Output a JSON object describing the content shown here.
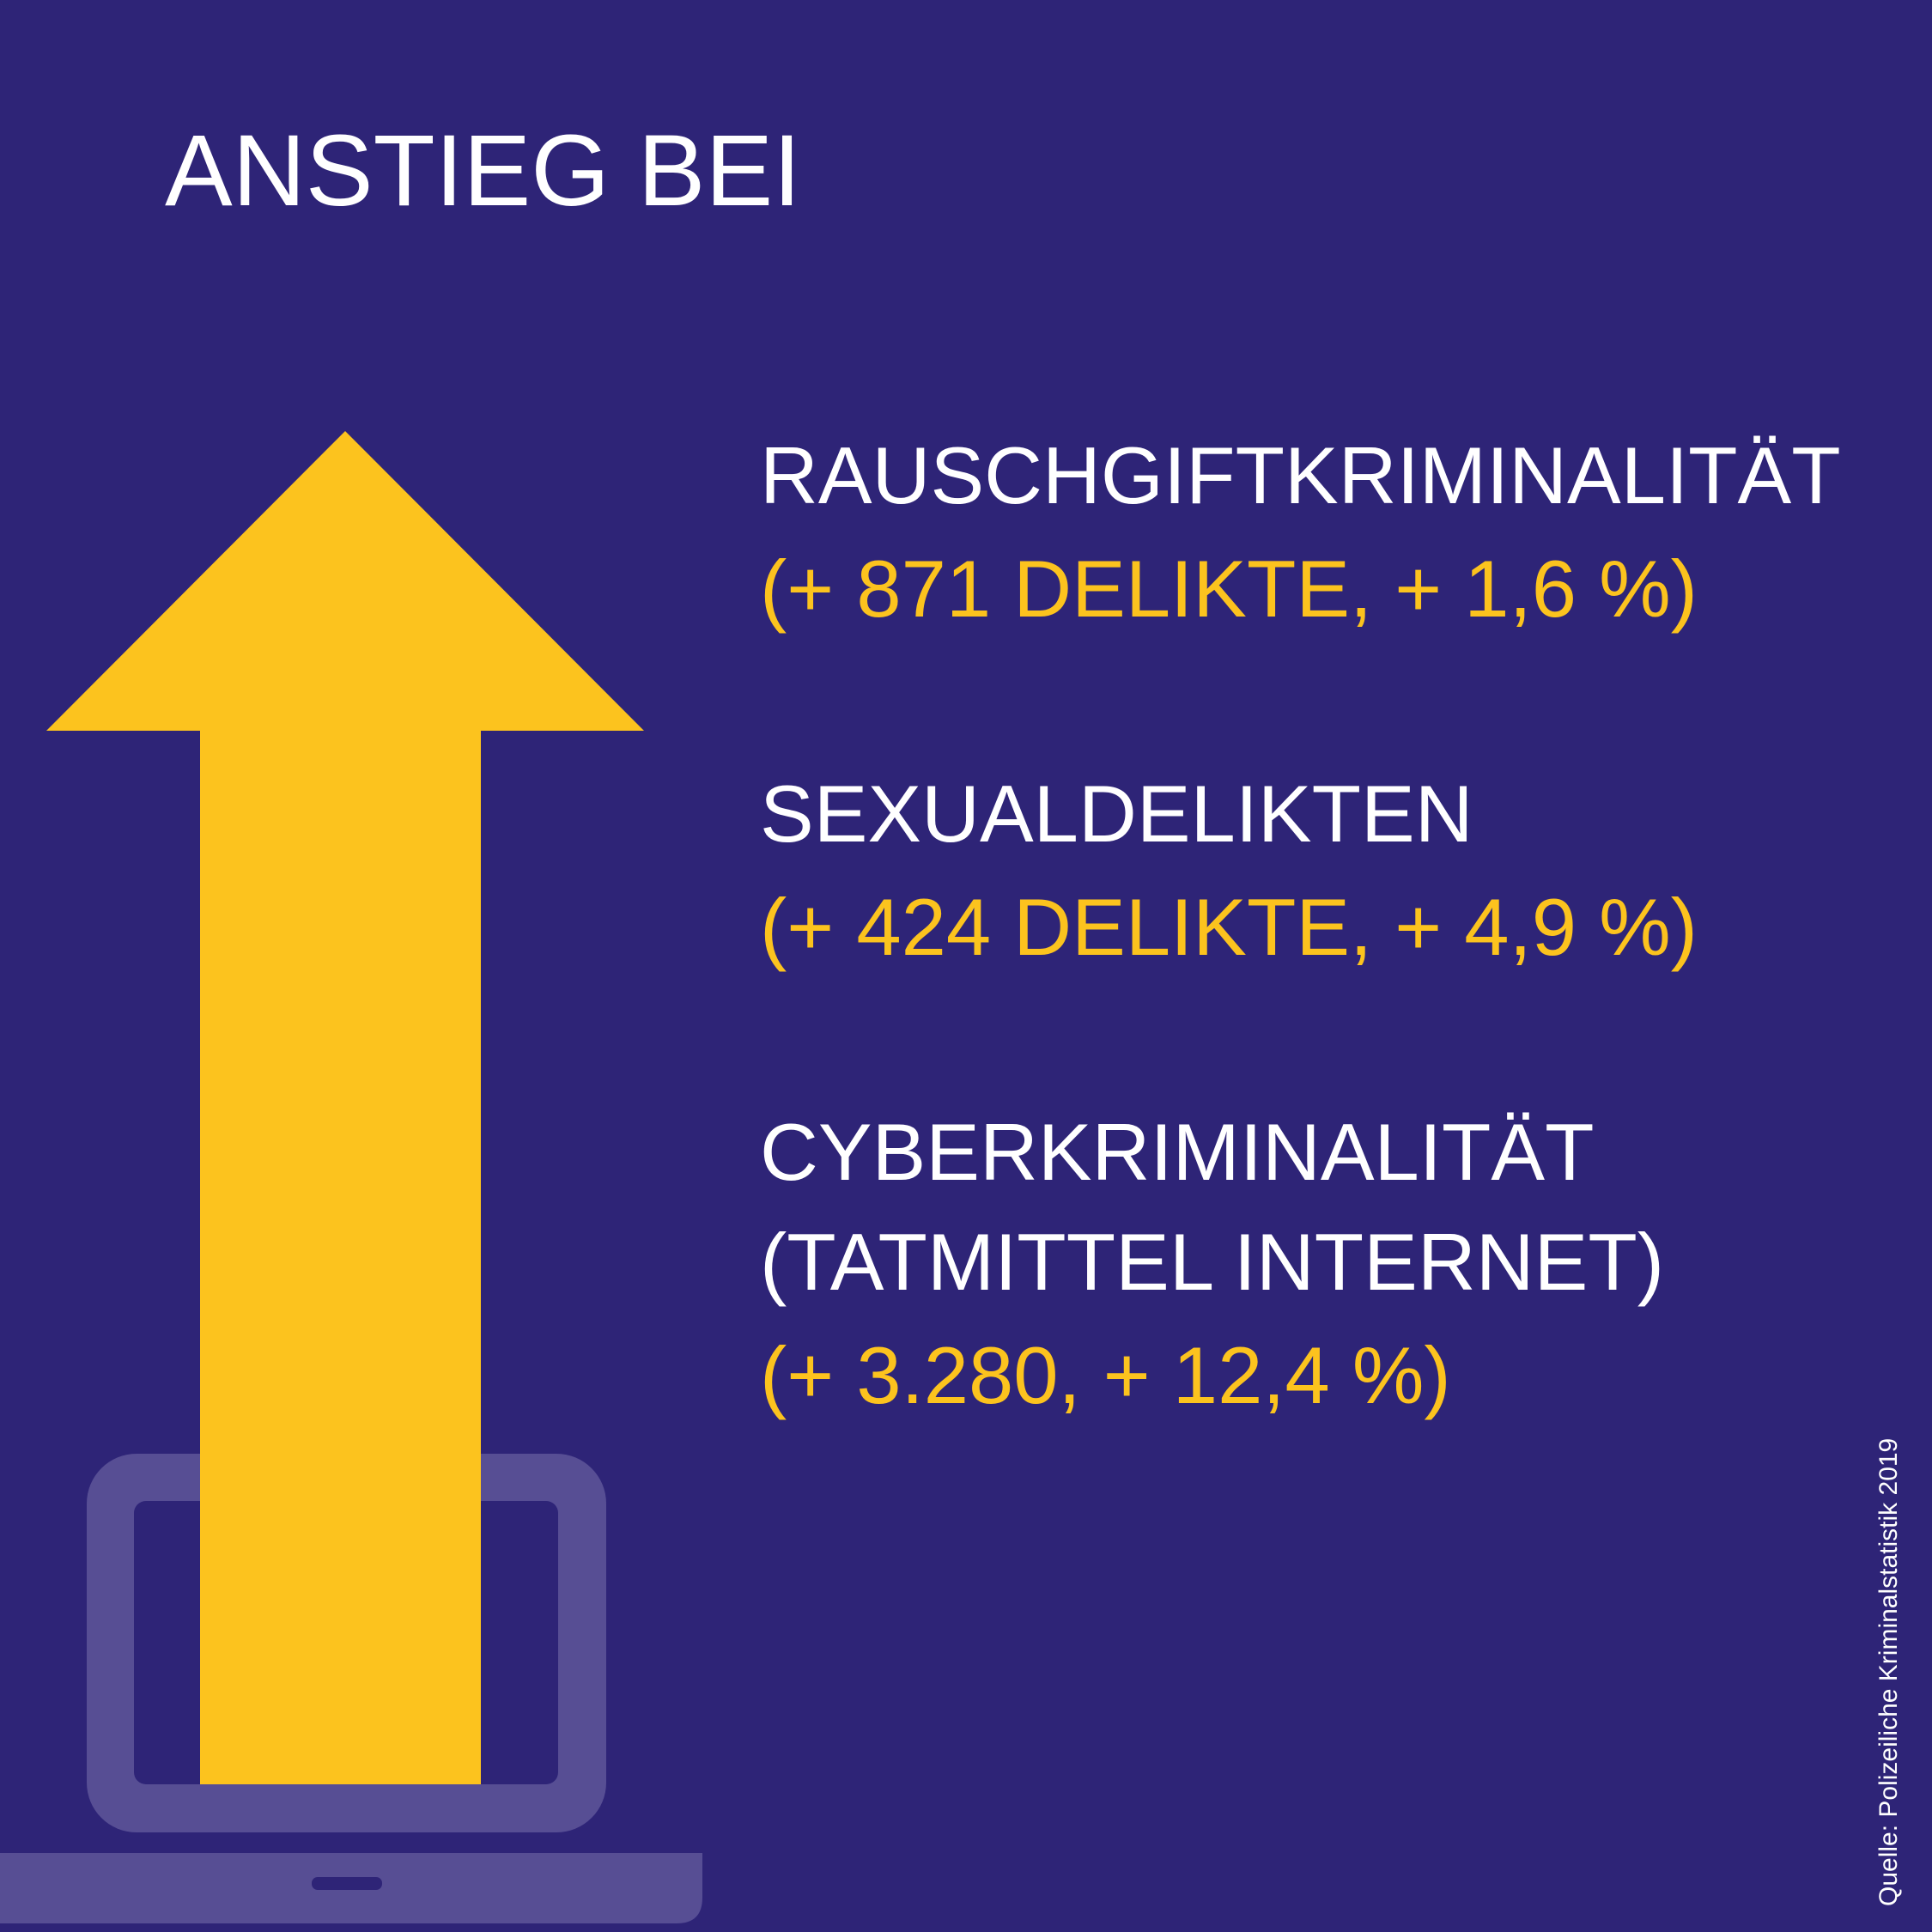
{
  "title": "ANSTIEG BEI",
  "colors": {
    "background": "#2e2477",
    "accent": "#fcc31e",
    "laptop": "#574e94",
    "text": "#ffffff"
  },
  "icons": [
    "up-arrow-icon",
    "laptop-icon"
  ],
  "items": [
    {
      "label": "RAUSCHGIFTKRIMINALITÄT",
      "value": "(+ 871 DELIKTE, + 1,6 %)"
    },
    {
      "label": "SEXUALDELIKTEN",
      "value": "(+ 424 DELIKTE, + 4,9 %)"
    },
    {
      "label": "CYBERKRIMINALITÄT",
      "label2": "(TATMITTEL INTERNET)",
      "value": "(+ 3.280, + 12,4 %)"
    }
  ],
  "source": "Quelle: Polizeiliche Kriminalstatistik 2019"
}
